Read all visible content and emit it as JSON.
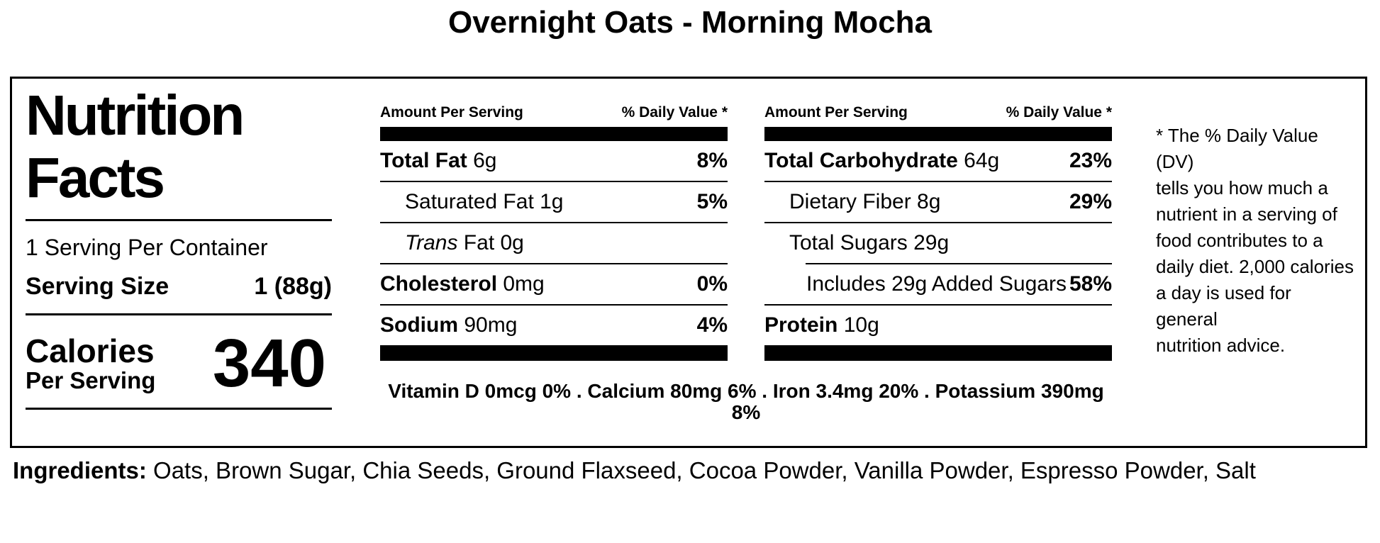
{
  "page_title": "Overnight Oats - Morning Mocha",
  "colors": {
    "text": "#000000",
    "background": "#ffffff"
  },
  "label": {
    "heading_line1": "Nutrition",
    "heading_line2": "Facts",
    "servings_per_container": "1 Serving Per Container",
    "serving_size_label": "Serving Size",
    "serving_size_value": "1 (88g)",
    "calories_line1": "Calories",
    "calories_line2": "Per Serving",
    "calories_value": "340",
    "amount_header": "Amount Per Serving",
    "dv_header": "% Daily Value *",
    "columns": [
      {
        "rows": [
          {
            "bold": "Total Fat",
            "rest": " 6g",
            "dv": "8%"
          },
          {
            "rest": "Saturated Fat 1g",
            "dv": "5%"
          },
          {
            "italic": "Trans",
            "rest": " Fat 0g",
            "dv": ""
          },
          {
            "bold": "Cholesterol",
            "rest": " 0mg",
            "dv": "0%"
          },
          {
            "bold": "Sodium",
            "rest": " 90mg",
            "dv": "4%"
          }
        ]
      },
      {
        "rows": [
          {
            "bold": "Total Carbohydrate",
            "rest": " 64g",
            "dv": "23%"
          },
          {
            "rest": "Dietary Fiber 8g",
            "dv": "29%"
          },
          {
            "rest": "Total Sugars 29g",
            "dv": ""
          },
          {
            "rest": "Includes 29g Added Sugars",
            "dv": "58%"
          },
          {
            "bold": "Protein",
            "rest": " 10g",
            "dv": ""
          }
        ]
      }
    ],
    "micronutrients_line": "Vitamin D 0mcg 0% . Calcium 80mg 6% . Iron 3.4mg 20% . Potassium 390mg 8%",
    "footnote_lines": [
      "* The % Daily Value (DV)",
      "tells you how much a",
      "nutrient in a serving of",
      "food contributes to a",
      "daily diet. 2,000 calories",
      "a day is used for general",
      "nutrition advice."
    ]
  },
  "ingredients": {
    "label": "Ingredients:",
    "text": "Oats, Brown Sugar, Chia Seeds, Ground Flaxseed, Cocoa Powder, Vanilla Powder, Espresso Powder, Salt"
  }
}
